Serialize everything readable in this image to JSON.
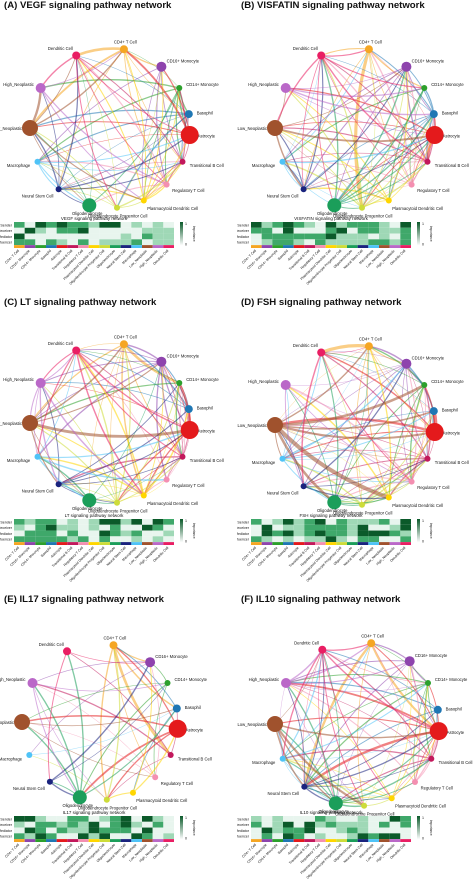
{
  "nodes": [
    {
      "label": "CD4+ T Cell",
      "color": "#f5a623",
      "size": 4
    },
    {
      "label": "CD16+ Monocyte",
      "color": "#8e44ad",
      "size": 5
    },
    {
      "label": "CD14+ Monocyte",
      "color": "#2ca02c",
      "size": 3
    },
    {
      "label": "Basophil",
      "color": "#1f77b4",
      "size": 4
    },
    {
      "label": "Astrocyte",
      "color": "#e41a1c",
      "size": 9
    },
    {
      "label": "Transitional B Cell",
      "color": "#c2185b",
      "size": 3
    },
    {
      "label": "Regulatory T Cell",
      "color": "#f48fb1",
      "size": 3
    },
    {
      "label": "Plasmacytoid Dendritic Cell",
      "color": "#ffd600",
      "size": 3
    },
    {
      "label": "Oligodendrocyte Progenitor Cell",
      "color": "#cddc39",
      "size": 3
    },
    {
      "label": "Oligodendrocyte",
      "color": "#1b9e5a",
      "size": 7
    },
    {
      "label": "Neural Stem Cell",
      "color": "#1a237e",
      "size": 3
    },
    {
      "label": "Macrophage",
      "color": "#4fc3f7",
      "size": 3
    },
    {
      "label": "Low_Neoplastic",
      "color": "#a0522d",
      "size": 8
    },
    {
      "label": "High_Neoplastic",
      "color": "#ba68c8",
      "size": 5
    },
    {
      "label": "Dendritic Cell",
      "color": "#e91e63",
      "size": 4
    }
  ],
  "heatmap_rows": [
    "Sender",
    "Receiver",
    "Mediator",
    "Influencer"
  ],
  "heatmap_legend": {
    "max": "1",
    "min": "0",
    "title": "Importance"
  },
  "panels": [
    {
      "letter": "(A)",
      "title": "VEGF signaling pathway network",
      "heatmap_title": "VEGF signaling pathway network"
    },
    {
      "letter": "(B)",
      "title": "VISFATIN signaling pathway network",
      "heatmap_title": "VISFATIN signaling pathway network"
    },
    {
      "letter": "(C)",
      "title": "LT signaling pathway network",
      "heatmap_title": "LT signaling pathway network"
    },
    {
      "letter": "(D)",
      "title": "FSH signaling pathway network",
      "heatmap_title": "FSH signaling pathway network"
    },
    {
      "letter": "(E)",
      "title": "IL17 signaling pathway network",
      "heatmap_title": "IL17 signaling pathway network"
    },
    {
      "letter": "(F)",
      "title": "IL10 signaling pathway network",
      "heatmap_title": "IL10 signaling pathway network"
    }
  ]
}
